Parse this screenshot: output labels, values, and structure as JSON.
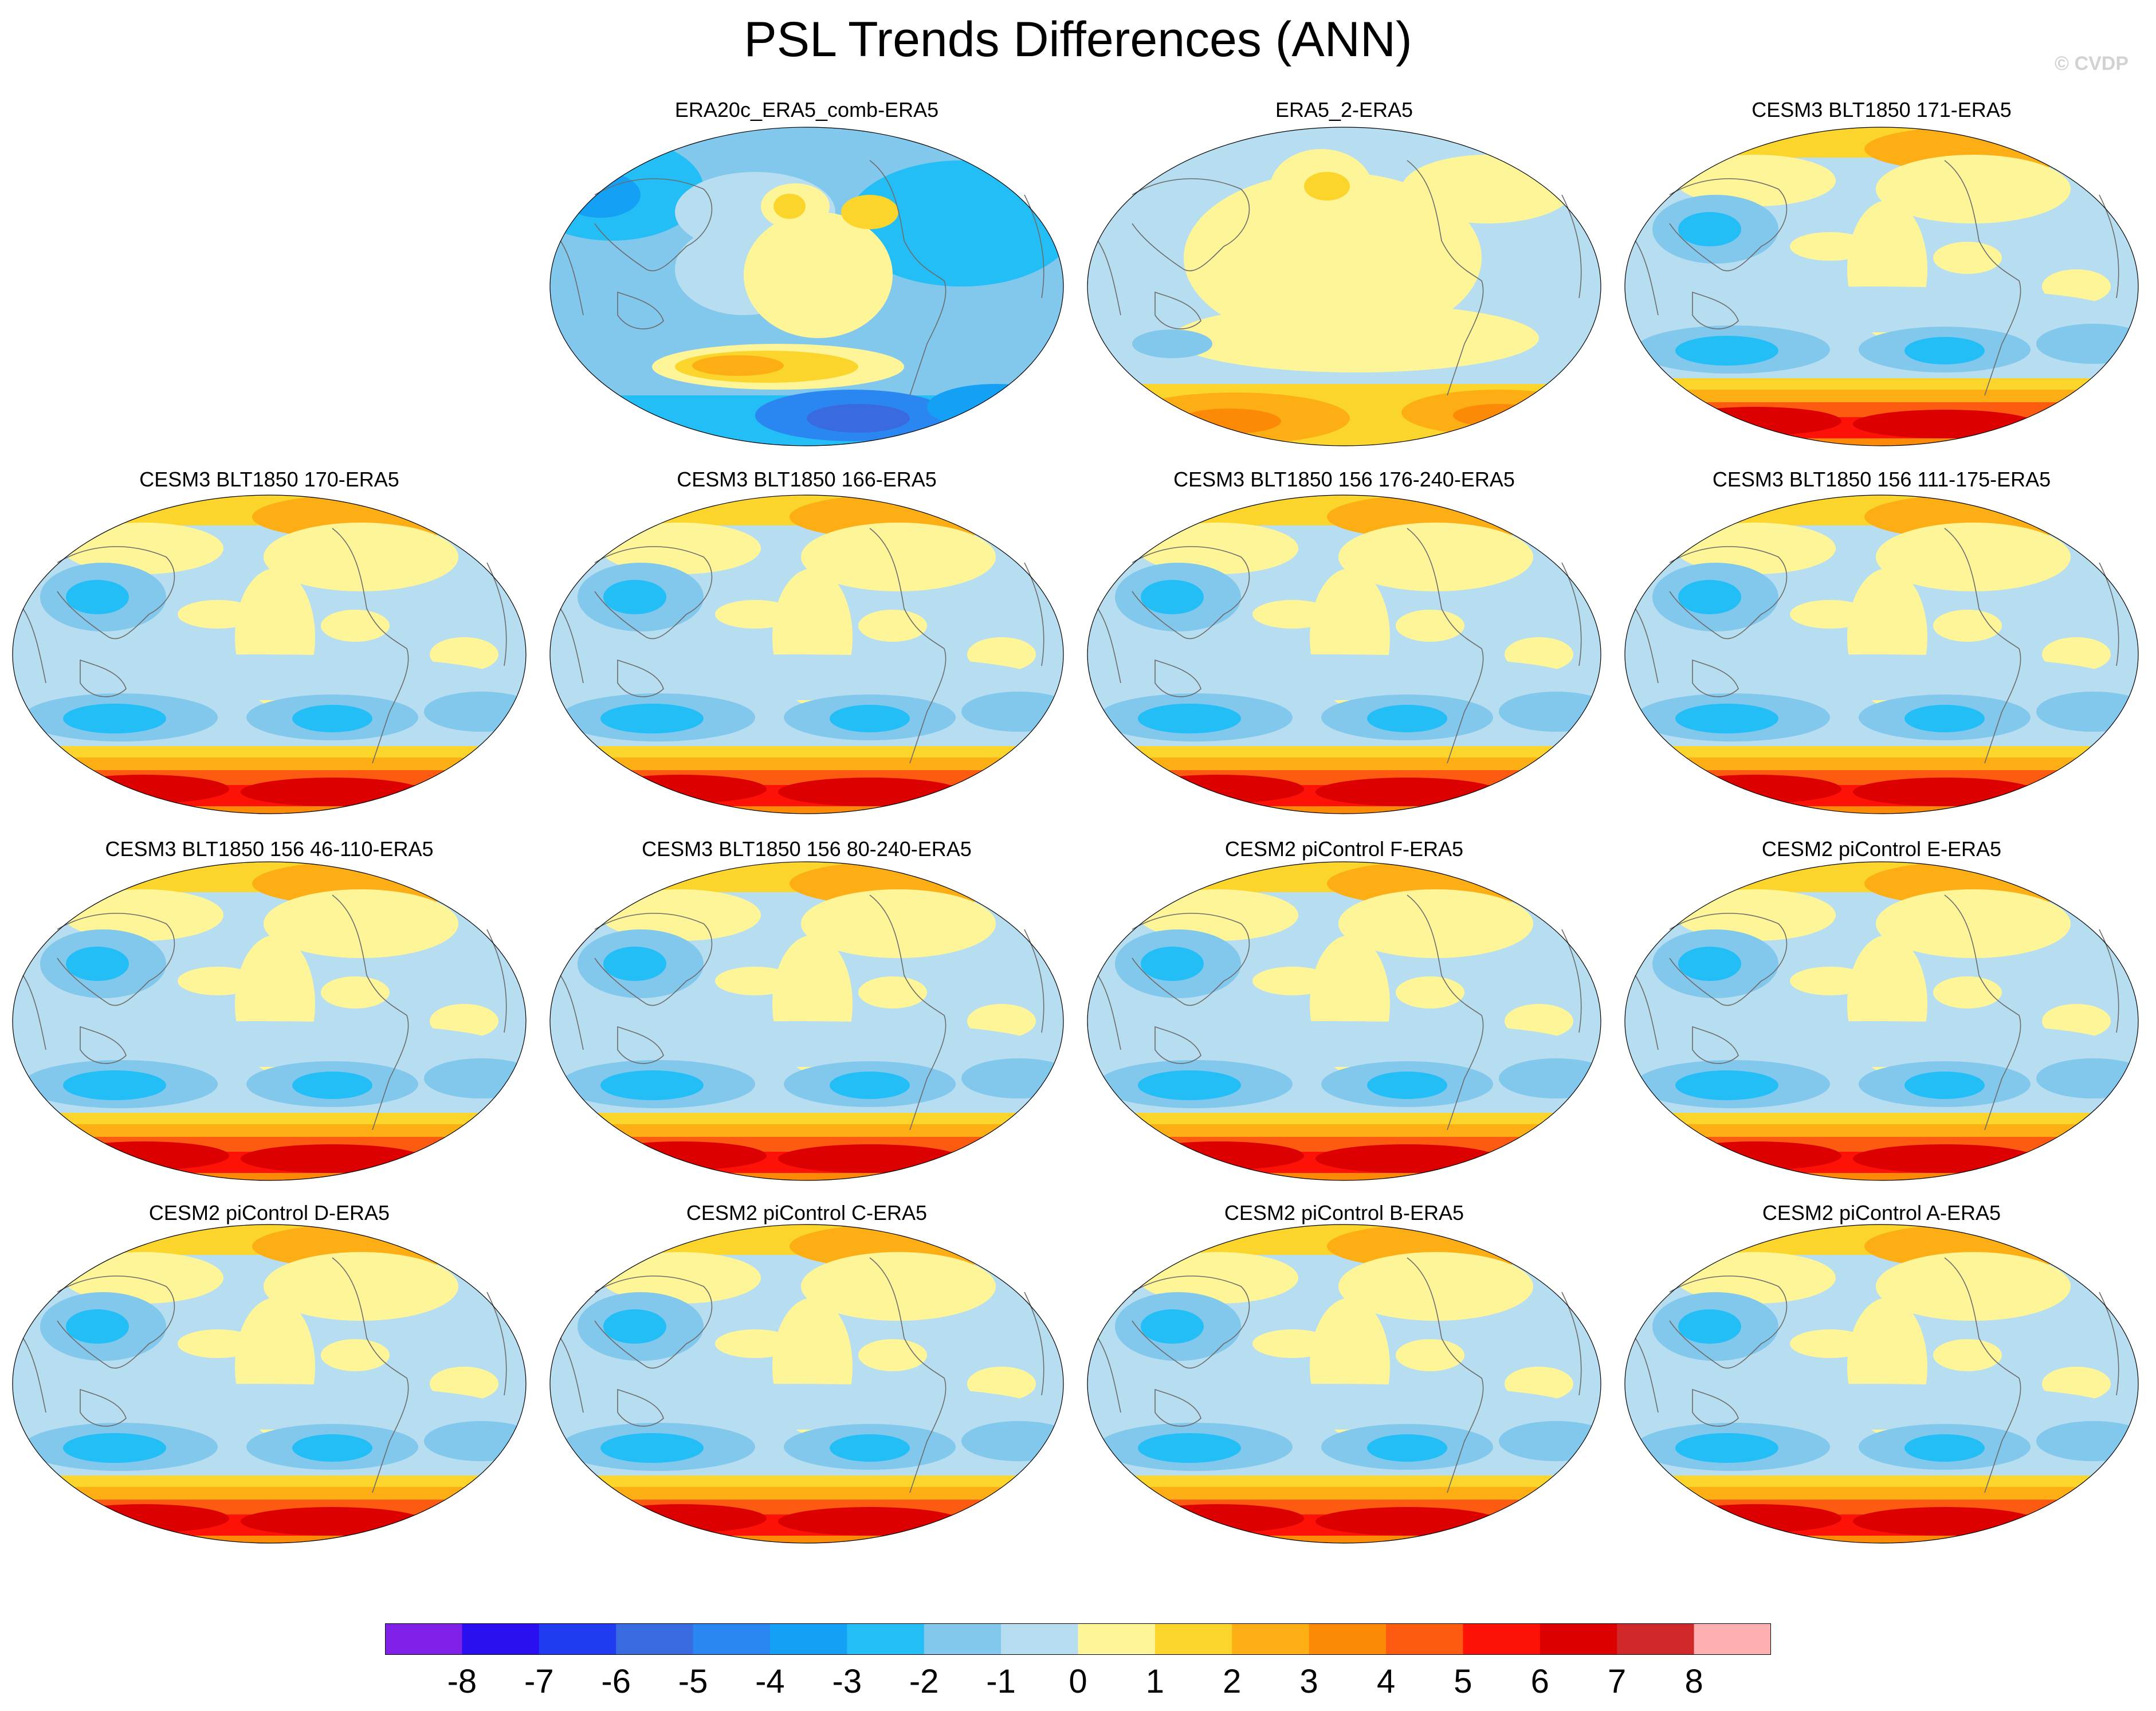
{
  "figure": {
    "title": "PSL Trends Differences (ANN)",
    "credit": "© CVDP",
    "projection": "Robinson (Pacific-centered), annual mean sea-level pressure trend differences"
  },
  "panels": [
    {
      "title": "ERA20c_ERA5_comb-ERA5",
      "row": 0,
      "col": 1,
      "pattern": "era20c"
    },
    {
      "title": "ERA5_2-ERA5",
      "row": 0,
      "col": 2,
      "pattern": "era5"
    },
    {
      "title": "CESM3 BLT1850 171-ERA5",
      "row": 0,
      "col": 3,
      "pattern": "model"
    },
    {
      "title": "CESM3 BLT1850 170-ERA5",
      "row": 1,
      "col": 0,
      "pattern": "model"
    },
    {
      "title": "CESM3 BLT1850 166-ERA5",
      "row": 1,
      "col": 1,
      "pattern": "model"
    },
    {
      "title": "CESM3 BLT1850 156 176-240-ERA5",
      "row": 1,
      "col": 2,
      "pattern": "model"
    },
    {
      "title": "CESM3 BLT1850 156 111-175-ERA5",
      "row": 1,
      "col": 3,
      "pattern": "model"
    },
    {
      "title": "CESM3 BLT1850 156 46-110-ERA5",
      "row": 2,
      "col": 0,
      "pattern": "model"
    },
    {
      "title": "CESM3 BLT1850 156 80-240-ERA5",
      "row": 2,
      "col": 1,
      "pattern": "model"
    },
    {
      "title": "CESM2 piControl F-ERA5",
      "row": 2,
      "col": 2,
      "pattern": "model"
    },
    {
      "title": "CESM2 piControl E-ERA5",
      "row": 2,
      "col": 3,
      "pattern": "model"
    },
    {
      "title": "CESM2 piControl D-ERA5",
      "row": 3,
      "col": 0,
      "pattern": "model"
    },
    {
      "title": "CESM2 piControl C-ERA5",
      "row": 3,
      "col": 1,
      "pattern": "model"
    },
    {
      "title": "CESM2 piControl B-ERA5",
      "row": 3,
      "col": 2,
      "pattern": "model"
    },
    {
      "title": "CESM2 piControl A-ERA5",
      "row": 3,
      "col": 3,
      "pattern": "model"
    }
  ],
  "colorbar": {
    "labels": [
      "-8",
      "-7",
      "-6",
      "-5",
      "-4",
      "-3",
      "-2",
      "-1",
      "0",
      "1",
      "2",
      "3",
      "4",
      "5",
      "6",
      "7",
      "8"
    ],
    "colors": [
      "#8020e8",
      "#2a10f0",
      "#1f3cf0",
      "#3a6adf",
      "#2a86f0",
      "#14a0f4",
      "#24bef6",
      "#82c7ec",
      "#b6def0",
      "#fdf598",
      "#fcd52c",
      "#fcae14",
      "#fd8a06",
      "#fe5b12",
      "#fe1208",
      "#dc0000",
      "#d02828",
      "#feb0b0"
    ]
  }
}
